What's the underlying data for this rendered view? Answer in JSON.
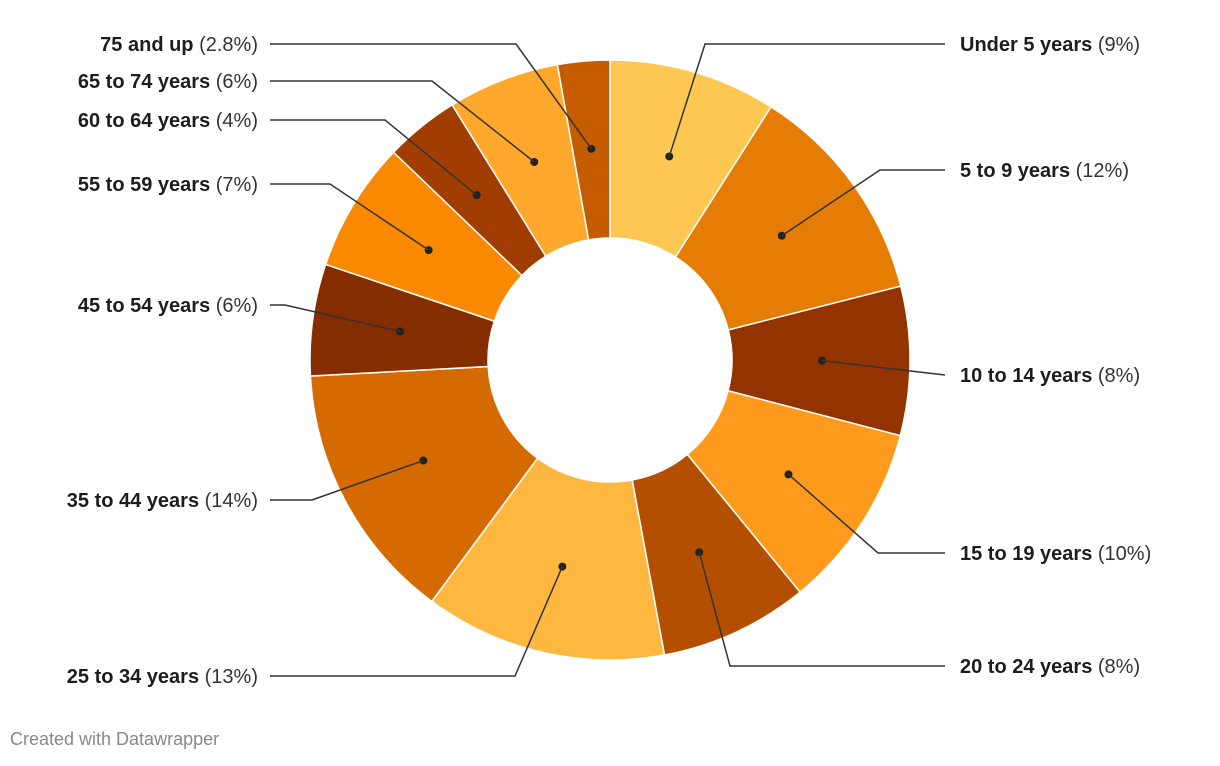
{
  "chart_data": {
    "type": "pie",
    "donut": true,
    "slices": [
      {
        "name": "Under 5 years",
        "value": 9,
        "percent_label": "(9%)",
        "color": "#FEC752"
      },
      {
        "name": "5 to 9 years",
        "value": 12,
        "percent_label": "(12%)",
        "color": "#E57C03"
      },
      {
        "name": "10 to 14 years",
        "value": 8,
        "percent_label": "(8%)",
        "color": "#933400"
      },
      {
        "name": "15 to 19 years",
        "value": 10,
        "percent_label": "(10%)",
        "color": "#FF9A1C"
      },
      {
        "name": "20 to 24 years",
        "value": 8,
        "percent_label": "(8%)",
        "color": "#B54F00"
      },
      {
        "name": "25 to 34 years",
        "value": 13,
        "percent_label": "(13%)",
        "color": "#FFB83F"
      },
      {
        "name": "35 to 44 years",
        "value": 14,
        "percent_label": "(14%)",
        "color": "#D56A00"
      },
      {
        "name": "45 to 54 years",
        "value": 6,
        "percent_label": "(6%)",
        "color": "#862D00"
      },
      {
        "name": "55 to 59 years",
        "value": 7,
        "percent_label": "(7%)",
        "color": "#FB8900"
      },
      {
        "name": "60 to 64 years",
        "value": 4,
        "percent_label": "(4%)",
        "color": "#A13D00"
      },
      {
        "name": "65 to 74 years",
        "value": 6,
        "percent_label": "(6%)",
        "color": "#FFA82C"
      },
      {
        "name": "75 and up",
        "value": 2.8,
        "percent_label": "(2.8%)",
        "color": "#C55D00"
      }
    ]
  },
  "footer": {
    "credit": "Created with Datawrapper"
  }
}
